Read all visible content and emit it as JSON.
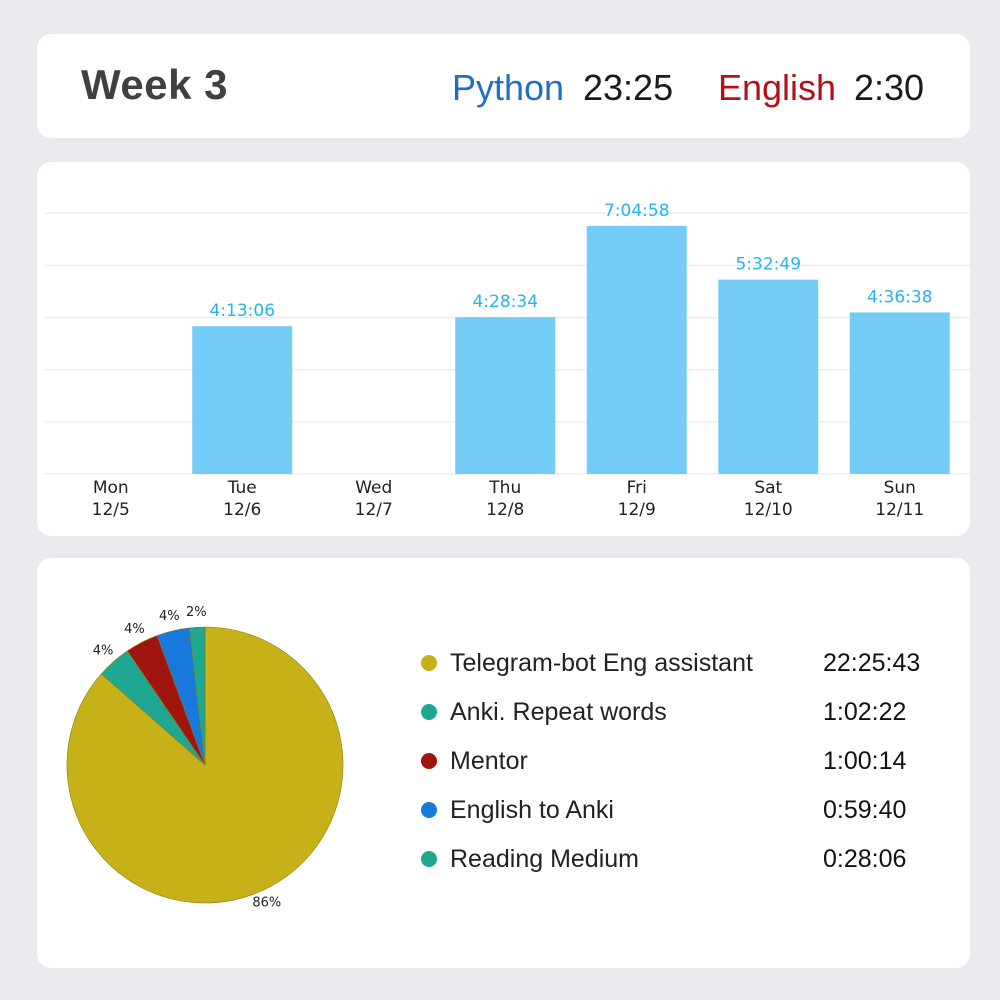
{
  "header": {
    "title": "Week 3",
    "python_label": "Python",
    "python_value": "23:25",
    "english_label": "English",
    "english_value": "2:30",
    "python_color": "#1f6fc4",
    "english_color": "#b2111a"
  },
  "chart_data": [
    {
      "type": "bar",
      "categories": [
        "Mon 12/5",
        "Tue 12/6",
        "Wed 12/7",
        "Thu 12/8",
        "Fri 12/9",
        "Sat 12/10",
        "Sun 12/11"
      ],
      "category_days": [
        "Mon",
        "Tue",
        "Wed",
        "Thu",
        "Fri",
        "Sat",
        "Sun"
      ],
      "category_dates": [
        "12/5",
        "12/6",
        "12/7",
        "12/8",
        "12/9",
        "12/10",
        "12/11"
      ],
      "values_seconds": [
        0,
        15186,
        0,
        16114,
        25498,
        19969,
        16598
      ],
      "data_labels": [
        "",
        "4:13:06",
        "",
        "4:28:34",
        "7:04:58",
        "5:32:49",
        "4:36:38"
      ],
      "ylim_seconds": [
        0,
        30000
      ],
      "grid": true,
      "bar_color": "#74cdf6",
      "label_color": "#25b4ec"
    },
    {
      "type": "pie",
      "labels": [
        "Telegram-bot Eng assistant",
        "Anki. Repeat words",
        "Mentor",
        "English to Anki",
        "Reading Medium"
      ],
      "values_text": [
        "22:25:43",
        "1:02:22",
        "1:00:14",
        "0:59:40",
        "0:28:06"
      ],
      "values_seconds": [
        80743,
        3742,
        3614,
        3580,
        1686
      ],
      "percent_labels": [
        "86%",
        "4%",
        "4%",
        "4%",
        "2%"
      ],
      "colors": [
        "#c6b118",
        "#1ea892",
        "#a0150f",
        "#1879dc",
        "#1ea892"
      ],
      "legend_dot_colors": [
        "#c6b118",
        "#1ea892",
        "#a0150f",
        "#1879dc",
        "#1ea892"
      ],
      "legend_placement": "right"
    }
  ]
}
